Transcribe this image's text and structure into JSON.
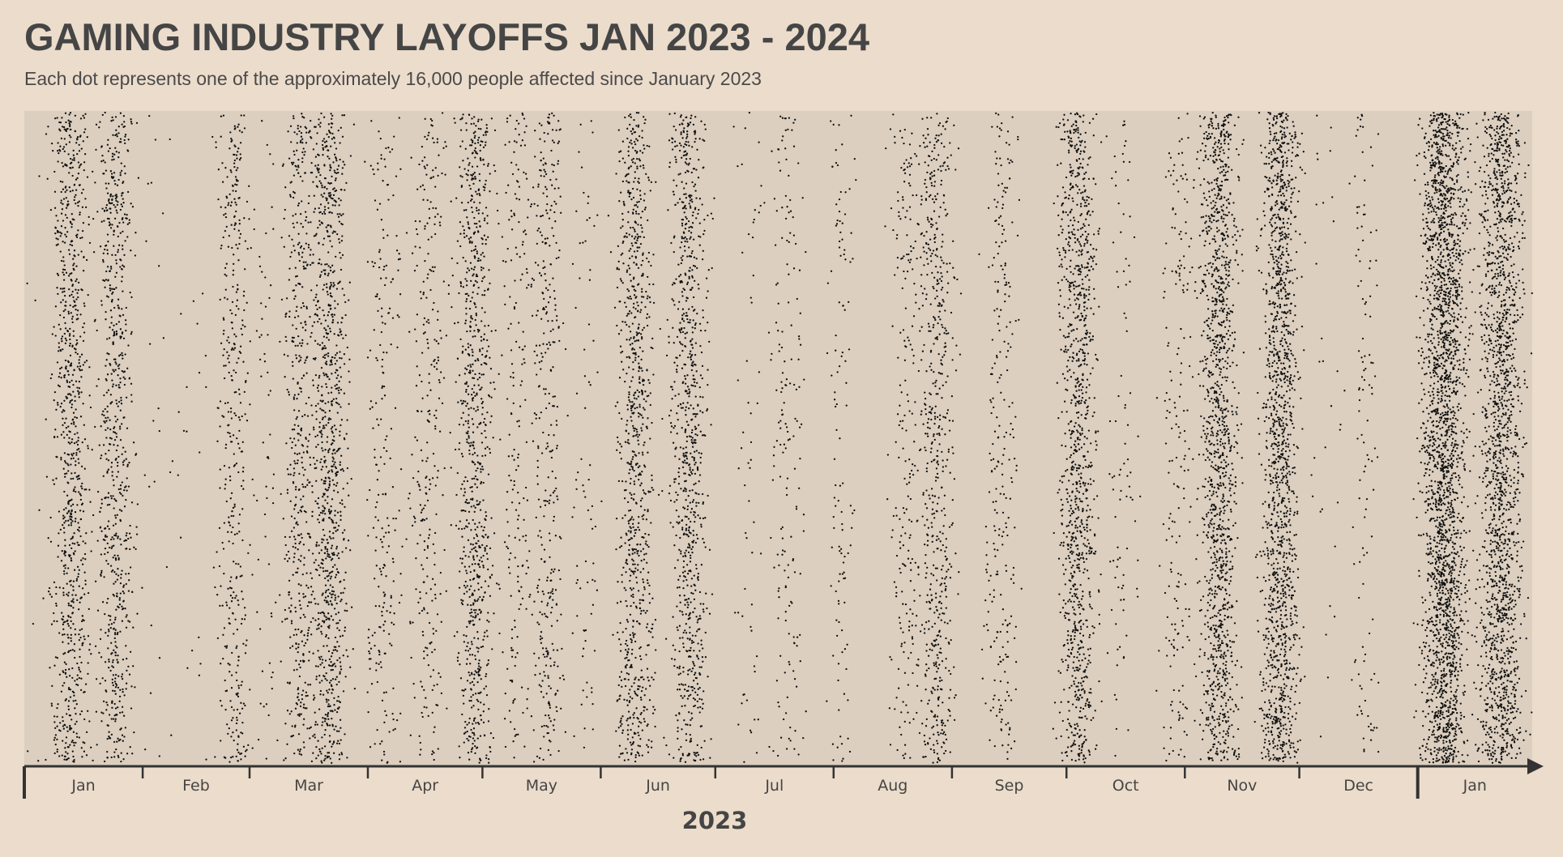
{
  "title": "GAMING INDUSTRY LAYOFFS JAN 2023 - 2024",
  "subtitle": "Each dot represents one of the approximately 16,000 people affected since January 2023",
  "chart_data": {
    "type": "scatter",
    "encoding": "jittered dot strip (one dot per person)",
    "x_axis": {
      "type": "date",
      "range": [
        "2023-01-01",
        "2024-01-31"
      ],
      "year_label": "2023",
      "tick_labels": [
        "Jan",
        "Feb",
        "Mar",
        "Apr",
        "May",
        "Jun",
        "Jul",
        "Aug",
        "Sep",
        "Oct",
        "Nov",
        "Dec",
        "Jan"
      ]
    },
    "grid": false,
    "legend": "none",
    "colors": {
      "background": "#ecdccb",
      "plot_background": "#dccfbf",
      "dot": "#111111",
      "axis": "#333333",
      "text": "#454545"
    },
    "series": [
      {
        "values": [
          {
            "date": "2023-01-05",
            "count": 12
          },
          {
            "date": "2023-01-13",
            "count": 900
          },
          {
            "date": "2023-01-25",
            "count": 750
          },
          {
            "date": "2023-02-05",
            "count": 25
          },
          {
            "date": "2023-02-14",
            "count": 20
          },
          {
            "date": "2023-02-25",
            "count": 420
          },
          {
            "date": "2023-03-05",
            "count": 60
          },
          {
            "date": "2023-03-14",
            "count": 520
          },
          {
            "date": "2023-03-22",
            "count": 950
          },
          {
            "date": "2023-04-05",
            "count": 240
          },
          {
            "date": "2023-04-17",
            "count": 300
          },
          {
            "date": "2023-04-29",
            "count": 850
          },
          {
            "date": "2023-05-10",
            "count": 200
          },
          {
            "date": "2023-05-18",
            "count": 380
          },
          {
            "date": "2023-05-28",
            "count": 80
          },
          {
            "date": "2023-06-10",
            "count": 880
          },
          {
            "date": "2023-06-24",
            "count": 880
          },
          {
            "date": "2023-07-10",
            "count": 60
          },
          {
            "date": "2023-07-20",
            "count": 180
          },
          {
            "date": "2023-08-03",
            "count": 120
          },
          {
            "date": "2023-08-20",
            "count": 230
          },
          {
            "date": "2023-08-28",
            "count": 620
          },
          {
            "date": "2023-09-14",
            "count": 270
          },
          {
            "date": "2023-10-04",
            "count": 1100
          },
          {
            "date": "2023-10-16",
            "count": 90
          },
          {
            "date": "2023-10-30",
            "count": 200
          },
          {
            "date": "2023-11-10",
            "count": 1350
          },
          {
            "date": "2023-11-26",
            "count": 1500
          },
          {
            "date": "2023-12-08",
            "count": 30
          },
          {
            "date": "2023-12-18",
            "count": 120
          },
          {
            "date": "2024-01-08",
            "count": 2500
          },
          {
            "date": "2024-01-23",
            "count": 1800
          }
        ]
      }
    ]
  }
}
